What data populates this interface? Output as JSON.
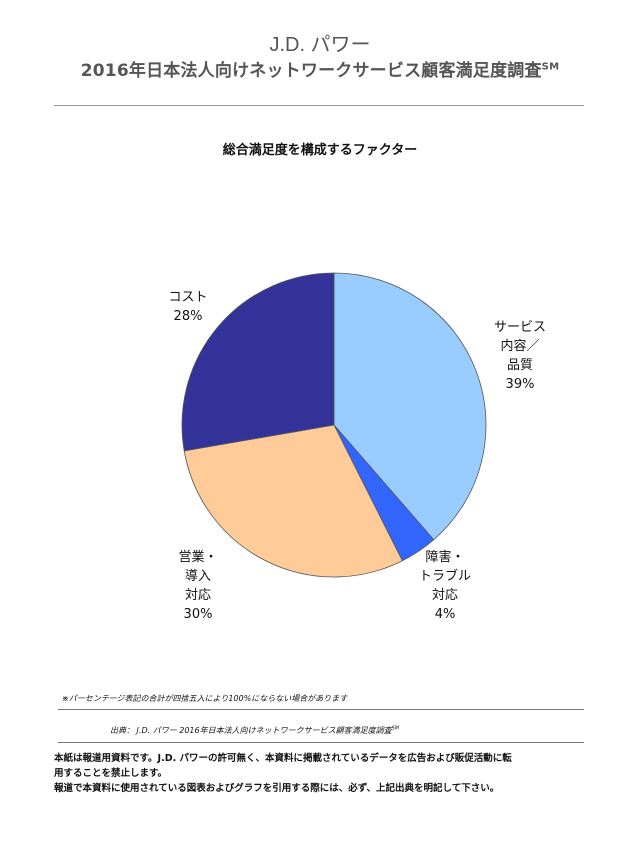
{
  "header": {
    "brand": "J.D. パワー",
    "survey_title": "2016年日本法人向けネットワークサービス顧客満足度調査",
    "survey_mark": "SM"
  },
  "chart_data": {
    "type": "pie",
    "title": "総合満足度を構成するファクター",
    "slices": [
      {
        "label": "サービス内容／品質",
        "value": 39,
        "display_label": "サービス\n内容／\n品質\n39%",
        "color": "#99ccff"
      },
      {
        "label": "障害・トラブル対応",
        "value": 4,
        "display_label": "障害・\nトラブル\n対応\n4%",
        "color": "#3366ff"
      },
      {
        "label": "営業・導入対応",
        "value": 30,
        "display_label": "営業・\n導入\n対応\n30%",
        "color": "#ffcc99"
      },
      {
        "label": "コスト",
        "value": 28,
        "display_label": "コスト\n28%",
        "color": "#333399"
      }
    ],
    "start": "12 o'clock",
    "direction": "clockwise"
  },
  "footer": {
    "note": "※パーセンテージ表記の合計が四捨五入により100%にならない場合があります",
    "source": "出典：  J.D. パワー  2016年日本法人向けネットワークサービス顧客満足度調査",
    "source_mark": "SM",
    "disclaimer_line1": "本紙は報道用資料です。J.D. パワーの許可無く、本資料に掲載されているデータを広告および販促活動に転",
    "disclaimer_line2": "用することを禁止します。",
    "disclaimer_line3": "報道で本資料に使用されている図表およびグラフを引用する際には、必ず、上記出典を明記して下さい。"
  }
}
